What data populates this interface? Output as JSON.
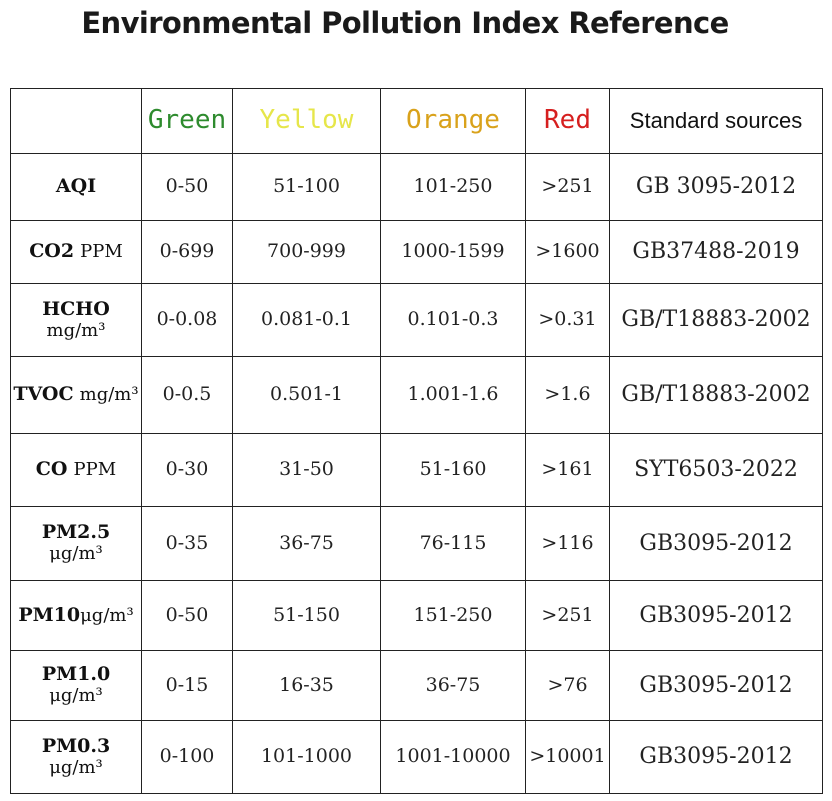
{
  "title": "Environmental Pollution Index Reference",
  "colors": {
    "green": "#2e8b2e",
    "yellow": "#e6e64a",
    "orange": "#d9a21b",
    "red": "#d61f1f"
  },
  "header": {
    "green": "Green",
    "yellow": "Yellow",
    "orange": "Orange",
    "red": "Red",
    "source": "Standard sources"
  },
  "rows": [
    {
      "name": "AQI",
      "unit": "",
      "green": "0-50",
      "yellow": "51-100",
      "orange": "101-250",
      "red": ">251",
      "source": "GB 3095-2012"
    },
    {
      "name": "CO2",
      "unit": "PPM",
      "green": "0-699",
      "yellow": "700-999",
      "orange": "1000-1599",
      "red": ">1600",
      "source": "GB37488-2019"
    },
    {
      "name": "HCHO",
      "unit": "mg/m³",
      "green": "0-0.08",
      "yellow": "0.081-0.1",
      "orange": "0.101-0.3",
      "red": ">0.31",
      "source": "GB/T18883-2002"
    },
    {
      "name": "TVOC",
      "unit": "mg/m³",
      "green": "0-0.5",
      "yellow": "0.501-1",
      "orange": "1.001-1.6",
      "red": ">1.6",
      "source": "GB/T18883-2002"
    },
    {
      "name": "CO",
      "unit": "PPM",
      "green": "0-30",
      "yellow": "31-50",
      "orange": "51-160",
      "red": ">161",
      "source": "SYT6503-2022"
    },
    {
      "name": "PM2.5",
      "unit": "μg/m³",
      "green": "0-35",
      "yellow": "36-75",
      "orange": "76-115",
      "red": ">116",
      "source": "GB3095-2012"
    },
    {
      "name": "PM10",
      "unit": "μg/m³",
      "green": "0-50",
      "yellow": "51-150",
      "orange": "151-250",
      "red": ">251",
      "source": "GB3095-2012"
    },
    {
      "name": "PM1.0",
      "unit": "μg/m³",
      "green": "0-15",
      "yellow": "16-35",
      "orange": "36-75",
      "red": ">76",
      "source": "GB3095-2012"
    },
    {
      "name": "PM0.3",
      "unit": "μg/m³",
      "green": "0-100",
      "yellow": "101-1000",
      "orange": "1001-10000",
      "red": ">10001",
      "source": "GB3095-2012"
    }
  ]
}
